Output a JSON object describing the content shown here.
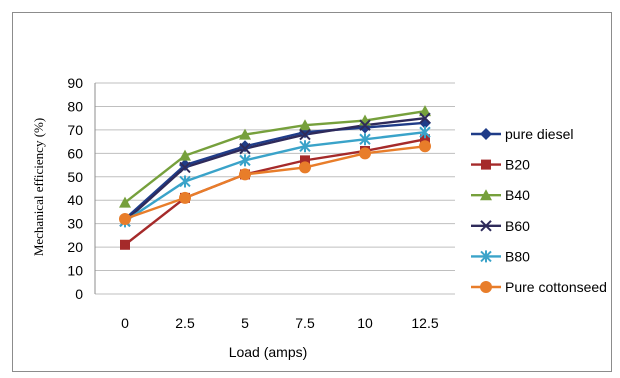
{
  "chart_data": {
    "type": "line",
    "title": "",
    "xlabel": "Load (amps)",
    "ylabel": "Mechanical efficiency (%)",
    "categories": [
      "0",
      "2.5",
      "5",
      "7.5",
      "10",
      "12.5"
    ],
    "ylim": [
      0,
      90
    ],
    "ytick_step": 10,
    "yticks": [
      "0",
      "10",
      "20",
      "30",
      "40",
      "50",
      "60",
      "70",
      "80",
      "90"
    ],
    "grid": "horizontal",
    "legend_position": "right",
    "series": [
      {
        "name": "pure diesel",
        "color": "#1f3c88",
        "marker": "diamond",
        "values": [
          32,
          55,
          63,
          69,
          71,
          73
        ]
      },
      {
        "name": "B20",
        "color": "#a52a2a",
        "marker": "square",
        "values": [
          21,
          41,
          51,
          57,
          61,
          66
        ]
      },
      {
        "name": "B40",
        "color": "#76a03c",
        "marker": "triangle",
        "values": [
          39,
          59,
          68,
          72,
          74,
          78
        ]
      },
      {
        "name": "B60",
        "color": "#2e2a5a",
        "marker": "x",
        "values": [
          31,
          54,
          62,
          68,
          72,
          75
        ]
      },
      {
        "name": "B80",
        "color": "#3aa3c9",
        "marker": "star",
        "values": [
          31,
          48,
          57,
          63,
          66,
          69
        ]
      },
      {
        "name": "Pure cottonseed",
        "color": "#e87d2a",
        "marker": "circle",
        "values": [
          32,
          41,
          51,
          54,
          60,
          63
        ]
      }
    ]
  }
}
